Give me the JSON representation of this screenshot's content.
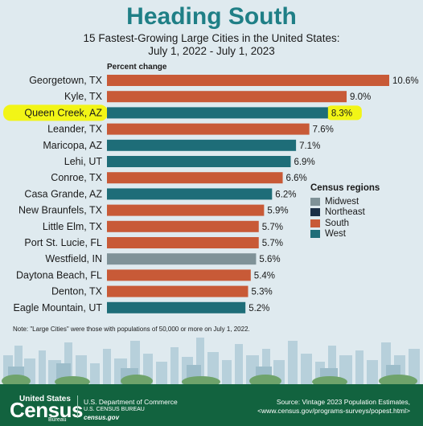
{
  "title": "Heading South",
  "subtitle_line1": "15 Fastest-Growing Large Cities in the United States:",
  "subtitle_line2": "July 1, 2022 - July 1, 2023",
  "chart_data": {
    "type": "bar",
    "orientation": "horizontal",
    "axis_label": "Percent change",
    "categories": [
      "Georgetown, TX",
      "Kyle, TX",
      "Queen Creek, AZ",
      "Leander, TX",
      "Maricopa, AZ",
      "Lehi, UT",
      "Conroe, TX",
      "Casa Grande, AZ",
      "New Braunfels, TX",
      "Little Elm, TX",
      "Port St. Lucie, FL",
      "Westfield, IN",
      "Daytona Beach, FL",
      "Denton, TX",
      "Eagle Mountain, UT"
    ],
    "values": [
      10.6,
      9.0,
      8.3,
      7.6,
      7.1,
      6.9,
      6.6,
      6.2,
      5.9,
      5.7,
      5.7,
      5.6,
      5.4,
      5.3,
      5.2
    ],
    "value_labels": [
      "10.6%",
      "9.0%",
      "8.3%",
      "7.6%",
      "7.1%",
      "6.9%",
      "6.6%",
      "6.2%",
      "5.9%",
      "5.7%",
      "5.7%",
      "5.6%",
      "5.4%",
      "5.3%",
      "5.2%"
    ],
    "regions": [
      "South",
      "South",
      "West",
      "South",
      "West",
      "West",
      "South",
      "West",
      "South",
      "South",
      "South",
      "Midwest",
      "South",
      "South",
      "West"
    ],
    "highlighted": "Queen Creek, AZ",
    "highlight_color": "#f2f516",
    "xlim": [
      0,
      10.6
    ],
    "grid": false
  },
  "legend": {
    "title": "Census regions",
    "items": [
      {
        "label": "Midwest",
        "color": "#7f9298"
      },
      {
        "label": "Northeast",
        "color": "#1b2f46"
      },
      {
        "label": "South",
        "color": "#c85a37"
      },
      {
        "label": "West",
        "color": "#1e6d78"
      }
    ]
  },
  "note": "Note: \"Large Cities\" were those with populations of 50,000 or more on July 1, 2022.",
  "footer": {
    "logo_top": "United States",
    "logo_main": "Census",
    "logo_bureau": "Bureau",
    "dept": "U.S. Department of Commerce",
    "bureau": "U.S. CENSUS BUREAU",
    "site": "census.gov",
    "source_line1": "Source: Vintage 2023 Population Estimates,",
    "source_line2": "<www.census.gov/programs-surveys/popest.html>",
    "color": "#12633f"
  },
  "colors": {
    "title": "#1f7f86",
    "background": "#dfeaef"
  }
}
